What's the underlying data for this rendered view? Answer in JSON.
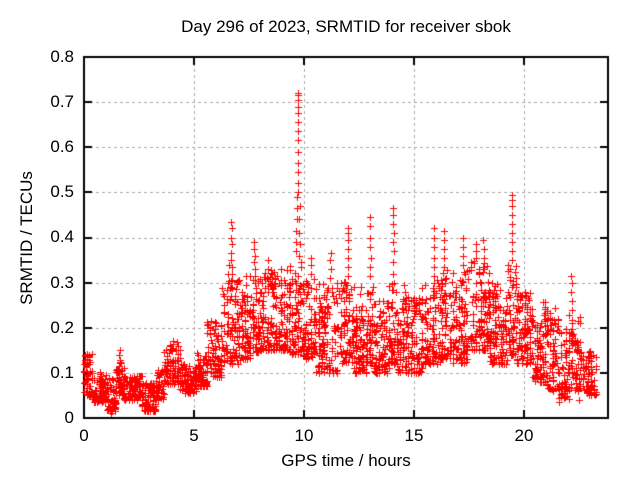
{
  "page": {
    "background": "#ffffff",
    "text_color": "#000000"
  },
  "chart_data": {
    "type": "scatter",
    "title": "Day 296 of 2023, SRMTID for receiver sbok",
    "xlabel": "GPS time / hours",
    "ylabel": "SRMTID / TECUs",
    "xlim": [
      0,
      23.8
    ],
    "ylim": [
      0,
      0.8
    ],
    "xticks": [
      0,
      5,
      10,
      15,
      20
    ],
    "yticks": [
      0,
      0.1,
      0.2,
      0.3,
      0.4,
      0.5,
      0.6,
      0.7,
      0.8
    ],
    "xtick_labels": [
      "0",
      "5",
      "10",
      "15",
      "20"
    ],
    "ytick_labels": [
      "0",
      "0.1",
      "0.2",
      "0.3",
      "0.4",
      "0.5",
      "0.6",
      "0.7",
      "0.8"
    ],
    "grid": true,
    "legend_position": "none",
    "marker": "plus",
    "marker_size": 7,
    "marker_color": "#ff0000",
    "grid_color": "#aaaaaa",
    "axis_color": "#000000",
    "seed": 296,
    "band_segments": [
      [
        0.0,
        0.35,
        0.05,
        0.145,
        55
      ],
      [
        0.35,
        1.05,
        0.035,
        0.105,
        90
      ],
      [
        1.05,
        1.45,
        0.015,
        0.09,
        55
      ],
      [
        1.45,
        1.8,
        0.05,
        0.13,
        50
      ],
      [
        1.8,
        2.65,
        0.04,
        0.095,
        110
      ],
      [
        2.65,
        3.25,
        0.015,
        0.08,
        80
      ],
      [
        3.25,
        3.65,
        0.04,
        0.11,
        50
      ],
      [
        3.65,
        4.35,
        0.075,
        0.17,
        90
      ],
      [
        4.35,
        5.05,
        0.055,
        0.12,
        85
      ],
      [
        5.05,
        5.6,
        0.07,
        0.145,
        70
      ],
      [
        5.6,
        6.25,
        0.09,
        0.22,
        80
      ],
      [
        6.25,
        7.05,
        0.12,
        0.31,
        95
      ],
      [
        7.05,
        7.55,
        0.13,
        0.28,
        65
      ],
      [
        7.55,
        8.0,
        0.14,
        0.32,
        60
      ],
      [
        8.0,
        9.35,
        0.15,
        0.33,
        170
      ],
      [
        9.35,
        9.95,
        0.14,
        0.35,
        80
      ],
      [
        9.95,
        10.55,
        0.13,
        0.31,
        75
      ],
      [
        10.55,
        11.55,
        0.1,
        0.3,
        120
      ],
      [
        11.55,
        12.25,
        0.12,
        0.31,
        85
      ],
      [
        12.25,
        12.85,
        0.1,
        0.26,
        75
      ],
      [
        12.85,
        13.15,
        0.12,
        0.3,
        40
      ],
      [
        13.15,
        13.85,
        0.1,
        0.26,
        85
      ],
      [
        13.85,
        14.25,
        0.12,
        0.31,
        50
      ],
      [
        14.25,
        15.35,
        0.1,
        0.27,
        130
      ],
      [
        15.35,
        16.15,
        0.12,
        0.31,
        95
      ],
      [
        16.15,
        16.65,
        0.13,
        0.33,
        60
      ],
      [
        16.65,
        17.45,
        0.12,
        0.33,
        95
      ],
      [
        17.45,
        18.45,
        0.15,
        0.35,
        120
      ],
      [
        18.45,
        19.25,
        0.12,
        0.3,
        95
      ],
      [
        19.25,
        19.65,
        0.14,
        0.34,
        50
      ],
      [
        19.65,
        20.35,
        0.12,
        0.28,
        85
      ],
      [
        20.35,
        21.05,
        0.08,
        0.26,
        85
      ],
      [
        21.05,
        21.55,
        0.06,
        0.25,
        65
      ],
      [
        21.55,
        22.05,
        0.04,
        0.2,
        60
      ],
      [
        22.05,
        22.55,
        0.06,
        0.23,
        65
      ],
      [
        22.55,
        23.25,
        0.05,
        0.15,
        80
      ]
    ],
    "spikes": [
      {
        "t": 1.2,
        "values": [
          0.012
        ]
      },
      {
        "t": 1.62,
        "values": [
          0.125,
          0.14,
          0.15
        ]
      },
      {
        "t": 2.85,
        "values": [
          0.015
        ]
      },
      {
        "t": 4.05,
        "values": [
          0.155,
          0.165
        ]
      },
      {
        "t": 5.75,
        "values": [
          0.2,
          0.215
        ]
      },
      {
        "t": 6.55,
        "values": [
          0.3,
          0.32,
          0.34
        ]
      },
      {
        "t": 6.7,
        "values": [
          0.27,
          0.29,
          0.305,
          0.32,
          0.335,
          0.35,
          0.365,
          0.385,
          0.4,
          0.42,
          0.435
        ]
      },
      {
        "t": 7.35,
        "values": [
          0.295,
          0.315
        ]
      },
      {
        "t": 7.75,
        "values": [
          0.3,
          0.315,
          0.33,
          0.345,
          0.36,
          0.375,
          0.39
        ]
      },
      {
        "t": 8.35,
        "values": [
          0.33,
          0.35
        ]
      },
      {
        "t": 9.65,
        "values": [
          0.37,
          0.39,
          0.415,
          0.44,
          0.465,
          0.49
        ]
      },
      {
        "t": 9.72,
        "values": [
          0.5,
          0.52,
          0.545,
          0.565,
          0.59,
          0.615,
          0.635,
          0.655,
          0.675,
          0.69,
          0.705,
          0.715,
          0.72
        ]
      },
      {
        "t": 9.79,
        "values": [
          0.36,
          0.385,
          0.41,
          0.44,
          0.47
        ]
      },
      {
        "t": 10.3,
        "values": [
          0.32,
          0.34,
          0.355
        ]
      },
      {
        "t": 11.2,
        "values": [
          0.31,
          0.33,
          0.35,
          0.365
        ]
      },
      {
        "t": 12.0,
        "values": [
          0.315,
          0.335,
          0.355,
          0.375,
          0.395,
          0.41,
          0.42
        ]
      },
      {
        "t": 12.55,
        "values": [
          0.275,
          0.29
        ]
      },
      {
        "t": 13.0,
        "values": [
          0.315,
          0.335,
          0.355,
          0.38,
          0.4,
          0.425,
          0.445
        ]
      },
      {
        "t": 14.05,
        "values": [
          0.3,
          0.32,
          0.345,
          0.37,
          0.39,
          0.41,
          0.43,
          0.45,
          0.465
        ]
      },
      {
        "t": 14.55,
        "values": [
          0.28,
          0.295
        ]
      },
      {
        "t": 15.9,
        "values": [
          0.315,
          0.335,
          0.355,
          0.38,
          0.4,
          0.42
        ]
      },
      {
        "t": 16.35,
        "values": [
          0.335,
          0.355,
          0.375,
          0.395,
          0.415
        ]
      },
      {
        "t": 17.2,
        "values": [
          0.34,
          0.36,
          0.38,
          0.4
        ]
      },
      {
        "t": 17.8,
        "values": [
          0.355,
          0.37,
          0.385
        ]
      },
      {
        "t": 18.15,
        "values": [
          0.355,
          0.375,
          0.395
        ]
      },
      {
        "t": 19.45,
        "values": [
          0.35,
          0.37,
          0.39,
          0.41,
          0.43,
          0.45,
          0.47,
          0.482,
          0.495
        ]
      },
      {
        "t": 21.6,
        "values": [
          0.035,
          0.045
        ]
      },
      {
        "t": 22.15,
        "values": [
          0.24,
          0.26,
          0.28,
          0.3,
          0.315
        ]
      },
      {
        "t": 22.5,
        "values": [
          0.04
        ]
      }
    ]
  }
}
